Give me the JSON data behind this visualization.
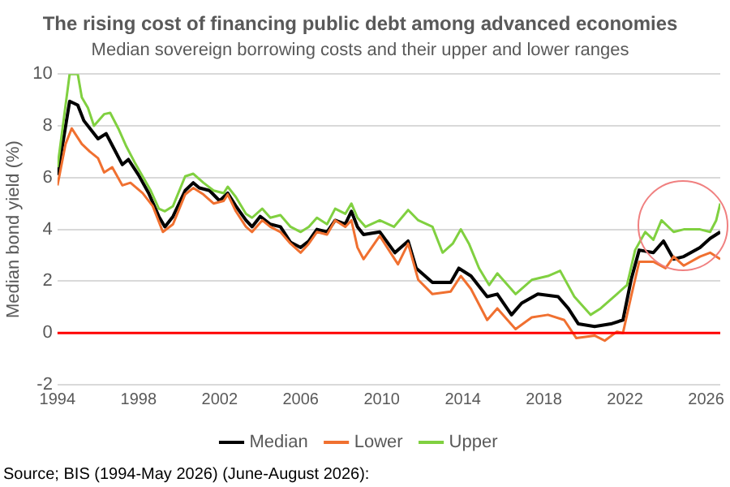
{
  "chart_data": {
    "type": "line",
    "title": "The rising cost of financing public debt among advanced economies",
    "subtitle": "Median sovereign borrowing costs and their upper and lower ranges",
    "ylabel": "Median bond yield (%)",
    "annotations": [
      "Source; BIS (1994-May 2026) (June-August 2026):"
    ],
    "xlim": [
      1994,
      2026.7
    ],
    "xticks": [
      1994,
      1998,
      2002,
      2006,
      2010,
      2014,
      2018,
      2022,
      2026
    ],
    "ylim": [
      -2,
      10
    ],
    "yticks": [
      -2,
      0,
      2,
      4,
      6,
      8,
      10
    ],
    "grid": "y",
    "legend": "bottom",
    "marker": "none",
    "line_style": "solid",
    "ref_lines": [
      {
        "axis": "y",
        "value": 0,
        "color": "#ff0000"
      }
    ],
    "series": [
      {
        "name": "Median",
        "color": "#000000",
        "x": [
          1994.0,
          1994.3,
          1994.6,
          1995.0,
          1995.3,
          1995.6,
          1996.0,
          1996.4,
          1996.8,
          1997.2,
          1997.5,
          1998.0,
          1998.5,
          1999.0,
          1999.3,
          1999.7,
          2000.3,
          2000.7,
          2001.0,
          2001.5,
          2002.0,
          2002.4,
          2002.8,
          2003.3,
          2003.6,
          2004.0,
          2004.5,
          2005.0,
          2005.5,
          2006.0,
          2006.4,
          2006.8,
          2007.3,
          2007.7,
          2008.2,
          2008.5,
          2008.8,
          2009.1,
          2009.9,
          2010.65,
          2011.3,
          2011.7,
          2012.5,
          2013.4,
          2013.8,
          2014.4,
          2015.2,
          2015.7,
          2016.4,
          2016.9,
          2017.7,
          2018.7,
          2019.2,
          2019.7,
          2020.5,
          2021.3,
          2021.9,
          2022.3,
          2022.7,
          2023.4,
          2023.9,
          2024.4,
          2024.9,
          2025.7,
          2026.2,
          2026.7
        ],
        "values": [
          6.1,
          7.5,
          8.95,
          8.8,
          8.2,
          7.9,
          7.5,
          7.7,
          7.1,
          6.5,
          6.7,
          6.1,
          5.4,
          4.5,
          4.1,
          4.5,
          5.5,
          5.8,
          5.6,
          5.5,
          5.1,
          5.4,
          4.9,
          4.35,
          4.1,
          4.5,
          4.2,
          4.1,
          3.5,
          3.3,
          3.55,
          4.0,
          3.9,
          4.35,
          4.2,
          4.7,
          4.1,
          3.8,
          3.9,
          3.1,
          3.55,
          2.5,
          1.95,
          1.95,
          2.5,
          2.2,
          1.4,
          1.5,
          0.7,
          1.15,
          1.5,
          1.4,
          0.95,
          0.35,
          0.25,
          0.35,
          0.5,
          2.05,
          3.2,
          3.1,
          3.55,
          2.85,
          2.95,
          3.3,
          3.65,
          3.9
        ]
      },
      {
        "name": "Lower",
        "color": "#f07030",
        "x": [
          1994.0,
          1994.4,
          1994.7,
          1995.2,
          1995.6,
          1996.0,
          1996.3,
          1996.7,
          1997.2,
          1997.6,
          1998.2,
          1998.7,
          1999.2,
          1999.7,
          2000.3,
          2000.7,
          2001.2,
          2001.7,
          2002.2,
          2002.4,
          2002.8,
          2003.3,
          2003.6,
          2004.1,
          2004.5,
          2005.0,
          2005.5,
          2006.0,
          2006.4,
          2006.8,
          2007.3,
          2007.7,
          2008.2,
          2008.5,
          2008.8,
          2009.1,
          2009.9,
          2010.8,
          2011.3,
          2011.8,
          2012.5,
          2013.4,
          2013.9,
          2014.4,
          2015.2,
          2015.7,
          2016.6,
          2017.4,
          2018.2,
          2019.0,
          2019.6,
          2020.5,
          2021.0,
          2021.6,
          2021.9,
          2022.3,
          2022.7,
          2023.4,
          2024.0,
          2024.4,
          2024.9,
          2025.7,
          2026.2,
          2026.7
        ],
        "values": [
          5.7,
          7.3,
          7.9,
          7.3,
          7.0,
          6.75,
          6.2,
          6.4,
          5.7,
          5.8,
          5.4,
          4.9,
          3.9,
          4.2,
          5.35,
          5.6,
          5.35,
          5.0,
          5.1,
          5.35,
          4.7,
          4.1,
          3.9,
          4.35,
          4.1,
          3.9,
          3.45,
          3.1,
          3.45,
          3.9,
          3.8,
          4.35,
          4.1,
          4.35,
          3.3,
          2.85,
          3.75,
          2.65,
          3.45,
          2.05,
          1.5,
          1.6,
          2.2,
          1.7,
          0.5,
          0.95,
          0.15,
          0.6,
          0.7,
          0.5,
          -0.2,
          -0.1,
          -0.3,
          0.05,
          0.0,
          1.4,
          2.75,
          2.75,
          2.5,
          2.95,
          2.6,
          2.95,
          3.1,
          2.85
        ]
      },
      {
        "name": "Upper",
        "color": "#80d040",
        "x": [
          1994.0,
          1994.3,
          1994.6,
          1995.0,
          1995.2,
          1995.5,
          1995.8,
          1996.3,
          1996.6,
          1997.0,
          1997.4,
          1997.8,
          1998.2,
          1998.6,
          1999.0,
          1999.3,
          1999.7,
          2000.3,
          2000.7,
          2001.2,
          2001.7,
          2002.2,
          2002.4,
          2002.8,
          2003.3,
          2003.6,
          2004.1,
          2004.5,
          2005.0,
          2005.5,
          2006.0,
          2006.4,
          2006.8,
          2007.3,
          2007.7,
          2008.2,
          2008.5,
          2008.8,
          2009.2,
          2009.9,
          2010.6,
          2011.3,
          2011.8,
          2012.5,
          2013.0,
          2013.5,
          2013.9,
          2014.3,
          2014.8,
          2015.3,
          2015.7,
          2016.6,
          2017.4,
          2018.2,
          2018.8,
          2019.5,
          2020.3,
          2020.8,
          2021.6,
          2022.1,
          2022.5,
          2023.0,
          2023.4,
          2023.8,
          2024.4,
          2024.9,
          2025.7,
          2026.2,
          2026.5,
          2026.7
        ],
        "values": [
          6.4,
          8.2,
          10,
          10,
          9.1,
          8.7,
          8.0,
          8.45,
          8.5,
          7.9,
          7.2,
          6.6,
          6.05,
          5.5,
          4.8,
          4.7,
          4.9,
          6.05,
          6.15,
          5.8,
          5.5,
          5.4,
          5.65,
          5.25,
          4.6,
          4.45,
          4.8,
          4.45,
          4.55,
          4.1,
          3.9,
          4.1,
          4.45,
          4.2,
          4.8,
          4.6,
          5.0,
          4.45,
          4.1,
          4.35,
          4.1,
          4.75,
          4.35,
          4.1,
          3.1,
          3.45,
          4.0,
          3.45,
          2.5,
          1.85,
          2.3,
          1.5,
          2.05,
          2.2,
          2.4,
          1.4,
          0.7,
          0.95,
          1.5,
          1.85,
          3.2,
          3.9,
          3.6,
          4.35,
          3.9,
          4.0,
          4.0,
          3.9,
          4.35,
          5.0
        ]
      }
    ]
  }
}
